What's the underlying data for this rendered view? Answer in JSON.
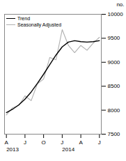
{
  "chart_data": {
    "type": "line",
    "title": "",
    "ylabel": "no.",
    "x": [
      0,
      1,
      2,
      3,
      4,
      5,
      6,
      7,
      8,
      9,
      10,
      11,
      12,
      13,
      14,
      15
    ],
    "series": [
      {
        "name": "Trend",
        "color": "#000000",
        "values": [
          7950,
          8020,
          8110,
          8230,
          8380,
          8560,
          8750,
          8950,
          9150,
          9320,
          9420,
          9450,
          9430,
          9420,
          9430,
          9450
        ]
      },
      {
        "name": "Seasonally Adjusted",
        "color": "#b0b0b0",
        "values": [
          7900,
          8050,
          8100,
          8300,
          8200,
          8550,
          8650,
          9100,
          9050,
          9680,
          9350,
          9200,
          9350,
          9250,
          9400,
          9520
        ]
      }
    ],
    "xlim": [
      -0.3,
      15.3
    ],
    "xticks": [
      {
        "value": 0,
        "label": "A"
      },
      {
        "value": 3,
        "label": "J"
      },
      {
        "value": 6,
        "label": "O"
      },
      {
        "value": 9,
        "label": "J"
      },
      {
        "value": 12,
        "label": "A"
      },
      {
        "value": 15,
        "label": "J"
      }
    ],
    "ylim": [
      7500,
      10000
    ],
    "yticks": [
      7500,
      8000,
      8500,
      9000,
      9500,
      10000
    ],
    "legend": "upper left",
    "annotations": [
      {
        "text": "2013",
        "x": 0
      },
      {
        "text": "2014",
        "x": 9
      }
    ]
  }
}
